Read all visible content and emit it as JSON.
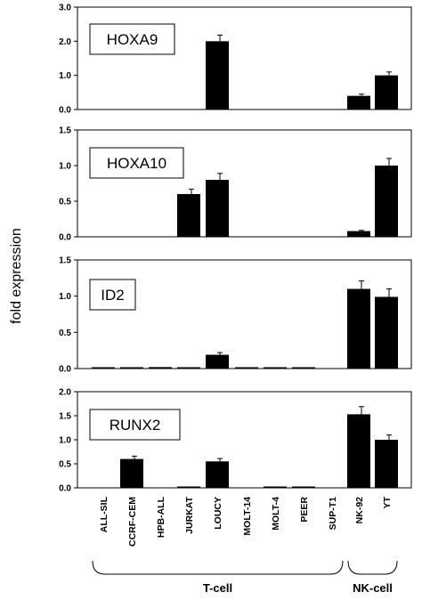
{
  "ylabel": "fold expression",
  "categories": [
    "ALL-SIL",
    "CCRF-CEM",
    "HPB-ALL",
    "JURKAT",
    "LOUCY",
    "MOLT-14",
    "MOLT-4",
    "PEER",
    "SUP-T1",
    "NK-92",
    "YT"
  ],
  "groups": [
    {
      "label": "T-cell",
      "from": 0,
      "to": 8
    },
    {
      "label": "NK-cell",
      "from": 9,
      "to": 10
    }
  ],
  "chart_data": [
    {
      "type": "bar",
      "title": "HOXA9",
      "ylim": [
        0,
        3
      ],
      "yticks": [
        "0.0",
        "1.0",
        "2.0",
        "3.0"
      ],
      "values": [
        0,
        0,
        0,
        0,
        2.0,
        0,
        0,
        0,
        0,
        0.4,
        1.0
      ],
      "errors": [
        0,
        0,
        0,
        0,
        0.18,
        0,
        0,
        0,
        0,
        0.05,
        0.1
      ]
    },
    {
      "type": "bar",
      "title": "HOXA10",
      "ylim": [
        0,
        1.5
      ],
      "yticks": [
        "0.0",
        "0.5",
        "1.0",
        "1.5"
      ],
      "values": [
        0,
        0,
        0,
        0.6,
        0.8,
        0,
        0,
        0,
        0,
        0.08,
        1.0
      ],
      "errors": [
        0,
        0,
        0,
        0.07,
        0.09,
        0,
        0,
        0,
        0,
        0.01,
        0.1
      ]
    },
    {
      "type": "bar",
      "title": "ID2",
      "ylim": [
        0,
        1.5
      ],
      "yticks": [
        "0.0",
        "0.5",
        "1.0",
        "1.5"
      ],
      "values": [
        0.01,
        0.01,
        0.02,
        0.01,
        0.19,
        0.005,
        0.005,
        0.005,
        0,
        1.1,
        0.99
      ],
      "errors": [
        0,
        0,
        0,
        0,
        0.03,
        0,
        0,
        0,
        0,
        0.11,
        0.11
      ]
    },
    {
      "type": "bar",
      "title": "RUNX2",
      "ylim": [
        0,
        2
      ],
      "yticks": [
        "0.0",
        "0.5",
        "1.0",
        "1.5",
        "2.0"
      ],
      "values": [
        0,
        0.6,
        0,
        0.02,
        0.55,
        0,
        0.02,
        0.01,
        0,
        1.53,
        1.0
      ],
      "errors": [
        0,
        0.06,
        0,
        0,
        0.06,
        0,
        0,
        0,
        0,
        0.16,
        0.1
      ]
    }
  ]
}
